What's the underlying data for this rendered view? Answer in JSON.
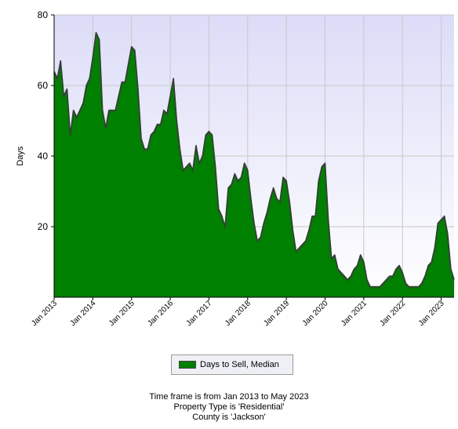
{
  "chart_data": {
    "type": "area",
    "title": "",
    "xlabel": "",
    "ylabel": "Days",
    "ylim": [
      0,
      80
    ],
    "yticks": [
      20,
      40,
      60,
      80
    ],
    "grid": true,
    "xlim": [
      "2013-01",
      "2023-05"
    ],
    "xtick_labels": [
      "Jan 2013",
      "Jan 2014",
      "Jan 2015",
      "Jan 2016",
      "Jan 2017",
      "Jan 2018",
      "Jan 2019",
      "Jan 2020",
      "Jan 2021",
      "Jan 2022",
      "Jan 2023"
    ],
    "fill_color": "#008000",
    "edge_color": "#3a3a3a",
    "plot_background_top": "#dcdcf8",
    "plot_background_bottom": "#ffffff",
    "legend_position": "bottom-center",
    "series": [
      {
        "name": "Days to Sell, Median",
        "x": [
          "2013-01",
          "2013-02",
          "2013-03",
          "2013-04",
          "2013-05",
          "2013-06",
          "2013-07",
          "2013-08",
          "2013-09",
          "2013-10",
          "2013-11",
          "2013-12",
          "2014-01",
          "2014-02",
          "2014-03",
          "2014-04",
          "2014-05",
          "2014-06",
          "2014-07",
          "2014-08",
          "2014-09",
          "2014-10",
          "2014-11",
          "2014-12",
          "2015-01",
          "2015-02",
          "2015-03",
          "2015-04",
          "2015-05",
          "2015-06",
          "2015-07",
          "2015-08",
          "2015-09",
          "2015-10",
          "2015-11",
          "2015-12",
          "2016-01",
          "2016-02",
          "2016-03",
          "2016-04",
          "2016-05",
          "2016-06",
          "2016-07",
          "2016-08",
          "2016-09",
          "2016-10",
          "2016-11",
          "2016-12",
          "2017-01",
          "2017-02",
          "2017-03",
          "2017-04",
          "2017-05",
          "2017-06",
          "2017-07",
          "2017-08",
          "2017-09",
          "2017-10",
          "2017-11",
          "2017-12",
          "2018-01",
          "2018-02",
          "2018-03",
          "2018-04",
          "2018-05",
          "2018-06",
          "2018-07",
          "2018-08",
          "2018-09",
          "2018-10",
          "2018-11",
          "2018-12",
          "2019-01",
          "2019-02",
          "2019-03",
          "2019-04",
          "2019-05",
          "2019-06",
          "2019-07",
          "2019-08",
          "2019-09",
          "2019-10",
          "2019-11",
          "2019-12",
          "2020-01",
          "2020-02",
          "2020-03",
          "2020-04",
          "2020-05",
          "2020-06",
          "2020-07",
          "2020-08",
          "2020-09",
          "2020-10",
          "2020-11",
          "2020-12",
          "2021-01",
          "2021-02",
          "2021-03",
          "2021-04",
          "2021-05",
          "2021-06",
          "2021-07",
          "2021-08",
          "2021-09",
          "2021-10",
          "2021-11",
          "2021-12",
          "2022-01",
          "2022-02",
          "2022-03",
          "2022-04",
          "2022-05",
          "2022-06",
          "2022-07",
          "2022-08",
          "2022-09",
          "2022-10",
          "2022-11",
          "2022-12",
          "2023-01",
          "2023-02",
          "2023-03",
          "2023-04",
          "2023-05"
        ],
        "values": [
          64,
          62,
          67,
          57,
          59,
          46,
          53,
          51,
          53,
          55,
          60,
          62,
          68,
          75,
          73,
          53,
          48,
          53,
          53,
          53,
          57,
          61,
          61,
          66,
          71,
          70,
          59,
          45,
          42,
          42,
          46,
          47,
          49,
          49,
          53,
          52,
          57,
          62,
          50,
          42,
          36,
          37,
          38,
          36,
          43,
          38,
          40,
          46,
          47,
          46,
          37,
          25,
          23,
          20,
          31,
          32,
          35,
          33,
          34,
          38,
          36,
          28,
          21,
          16,
          17,
          21,
          24,
          28,
          31,
          28,
          27,
          34,
          33,
          27,
          19,
          13,
          14,
          15,
          16,
          19,
          23,
          23,
          33,
          37,
          38,
          22,
          11,
          12,
          8,
          7,
          6,
          5,
          6,
          8,
          9,
          12,
          10,
          5,
          3,
          3,
          3,
          3,
          4,
          5,
          6,
          6,
          8,
          9,
          7,
          4,
          3,
          3,
          3,
          3,
          4,
          6,
          9,
          10,
          14,
          21,
          22,
          23,
          18,
          8,
          5
        ]
      }
    ]
  },
  "footer": {
    "line1": "Time frame is from Jan 2013 to May 2023",
    "line2": "Property Type is 'Residential'",
    "line3": "County is 'Jackson'"
  }
}
